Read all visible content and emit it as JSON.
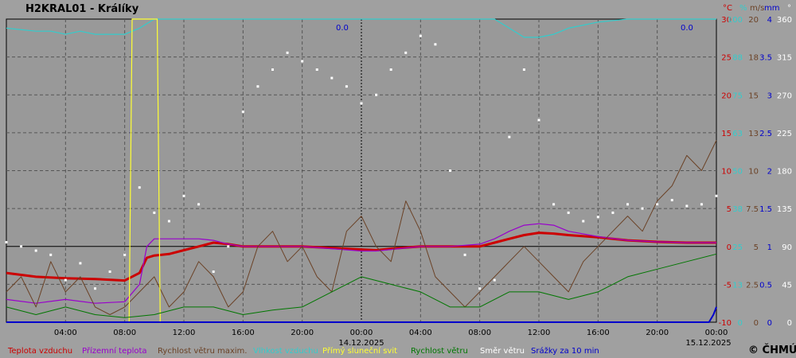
{
  "chart_data": {
    "type": "line",
    "title": "H2KRAL01 - Králíky",
    "copyright": "© ČHMÚ",
    "axis_units": [
      "°C",
      "%",
      "m/s",
      "mm",
      "°"
    ],
    "x_ticks": [
      "04:00",
      "08:00",
      "12:00",
      "16:00",
      "20:00",
      "00:00",
      "04:00",
      "08:00",
      "12:00",
      "16:00",
      "20:00",
      "00:00"
    ],
    "x_dates": [
      "14.12.2025",
      "15.12.2025"
    ],
    "y_axes": {
      "temperature_c": [
        30,
        25,
        20,
        15,
        10,
        5,
        0,
        -5,
        -10
      ],
      "humidity_pct": [
        100,
        88,
        75,
        63,
        50,
        38,
        25,
        13,
        0
      ],
      "wind_max_ms": [
        20,
        18,
        15,
        13,
        10,
        7.5,
        5,
        2.5,
        0
      ],
      "precip_mm": [
        4,
        3.5,
        3,
        2.5,
        2,
        1.5,
        1,
        0.5,
        0
      ],
      "wind_dir_deg": [
        360,
        315,
        270,
        225,
        180,
        135,
        90,
        45,
        0
      ]
    },
    "ylim_temperature": [
      -10,
      30
    ],
    "annotations": [
      "0.0",
      "0.0"
    ],
    "colors": {
      "temperature": "#cc0000",
      "ground_temp": "#9900cc",
      "wind_max": "#6b4226",
      "humidity": "#33cccc",
      "sunshine": "#ffff33",
      "wind_speed": "#007700",
      "wind_dir": "#ffffff",
      "precip": "#0000cc"
    },
    "series": [
      {
        "name": "Teplota vzduchu",
        "key": "temperature",
        "axis": "temperature_c",
        "x": [
          0,
          2,
          4,
          6,
          8,
          9,
          9.5,
          10,
          11,
          12,
          13,
          14,
          15,
          16,
          18,
          20,
          22,
          24,
          25,
          26,
          28,
          30,
          32,
          33,
          34,
          35,
          36,
          37,
          38,
          40,
          42,
          44,
          46,
          48
        ],
        "y": [
          -3.5,
          -4,
          -4.2,
          -4.3,
          -4.5,
          -3.5,
          -1.5,
          -1.2,
          -1,
          -0.5,
          0,
          0.5,
          0.3,
          0,
          0,
          0,
          -0.2,
          -0.4,
          -0.5,
          -0.3,
          0,
          0,
          0,
          0.5,
          1,
          1.5,
          1.8,
          1.7,
          1.5,
          1.2,
          0.8,
          0.6,
          0.5,
          0.5
        ]
      },
      {
        "name": "Přízemní teplota",
        "key": "ground_temp",
        "axis": "temperature_c",
        "x": [
          0,
          2,
          4,
          6,
          8,
          9,
          9.5,
          10,
          11,
          12,
          13,
          14,
          15,
          16,
          18,
          20,
          22,
          24,
          25,
          26,
          28,
          30,
          32,
          33,
          34,
          35,
          36,
          37,
          38,
          40,
          42,
          44,
          46,
          48
        ],
        "y": [
          -7,
          -7.5,
          -7,
          -7.5,
          -7.3,
          -5,
          0,
          1,
          1,
          1,
          1,
          0.8,
          0.3,
          0,
          0,
          0,
          -0.3,
          -0.6,
          -0.6,
          -0.4,
          0,
          0,
          0.3,
          1,
          2,
          2.8,
          3,
          2.8,
          2,
          1.3,
          0.8,
          0.6,
          0.5,
          0.5
        ]
      },
      {
        "name": "Rychlost větru maxim.",
        "key": "wind_max",
        "axis": "wind_max_ms",
        "x": [
          0,
          1,
          2,
          3,
          4,
          5,
          6,
          7,
          8,
          9,
          10,
          11,
          12,
          13,
          14,
          15,
          16,
          17,
          18,
          19,
          20,
          21,
          22,
          23,
          24,
          25,
          26,
          27,
          28,
          29,
          30,
          31,
          32,
          33,
          34,
          35,
          36,
          37,
          38,
          39,
          40,
          41,
          42,
          43,
          44,
          45,
          46,
          47,
          48
        ],
        "y": [
          2,
          3,
          1,
          4,
          2,
          3,
          1,
          0.5,
          1,
          2,
          3,
          1,
          2,
          4,
          3,
          1,
          2,
          5,
          6,
          4,
          5,
          3,
          2,
          6,
          7,
          5,
          4,
          8,
          6,
          3,
          2,
          1,
          2,
          3,
          4,
          5,
          4,
          3,
          2,
          4,
          5,
          6,
          7,
          6,
          8,
          9,
          11,
          10,
          12
        ]
      },
      {
        "name": "Vlhkost vzduchu",
        "key": "humidity",
        "axis": "humidity_pct",
        "x": [
          0,
          2,
          3,
          4,
          5,
          6,
          7,
          8,
          9,
          10,
          12,
          14,
          16,
          18,
          20,
          22,
          24,
          26,
          28,
          30,
          32,
          33,
          34,
          35,
          36,
          37,
          38,
          40,
          42,
          44,
          46,
          48
        ],
        "y": [
          97,
          96,
          96,
          95,
          96,
          95,
          95,
          95,
          97,
          100,
          100,
          100,
          100,
          100,
          100,
          100,
          100,
          100,
          100,
          100,
          100,
          100,
          97,
          94,
          94,
          95,
          97,
          99,
          100,
          100,
          100,
          100
        ]
      },
      {
        "name": "Přímý sluneční svit",
        "key": "sunshine",
        "axis": "humidity_pct",
        "x": [
          8.3,
          8.5,
          10.1,
          10.2,
          10.4,
          10.5
        ],
        "y": [
          0,
          100,
          100,
          100,
          0,
          0
        ]
      },
      {
        "name": "Rychlost větru",
        "key": "wind_speed",
        "axis": "wind_max_ms",
        "x": [
          0,
          2,
          4,
          6,
          8,
          10,
          12,
          14,
          16,
          18,
          20,
          22,
          24,
          26,
          28,
          30,
          32,
          34,
          36,
          38,
          40,
          42,
          44,
          46,
          48
        ],
        "y": [
          1,
          0.5,
          1,
          0.5,
          0.3,
          0.5,
          1,
          1,
          0.5,
          0.8,
          1,
          2,
          3,
          2.5,
          2,
          1,
          1,
          2,
          2,
          1.5,
          2,
          3,
          3.5,
          4,
          4.5
        ]
      },
      {
        "name": "Směr větru",
        "key": "wind_dir",
        "axis": "wind_dir_deg",
        "x": [
          0,
          1,
          2,
          3,
          4,
          5,
          6,
          7,
          8,
          9,
          10,
          11,
          12,
          13,
          14,
          15,
          16,
          17,
          18,
          19,
          20,
          21,
          22,
          23,
          24,
          25,
          26,
          27,
          28,
          29,
          30,
          31,
          32,
          33,
          34,
          35,
          36,
          37,
          38,
          39,
          40,
          41,
          42,
          43,
          44,
          45,
          46,
          47,
          48
        ],
        "y": [
          95,
          90,
          85,
          80,
          50,
          70,
          40,
          60,
          80,
          160,
          130,
          120,
          150,
          140,
          60,
          90,
          250,
          280,
          300,
          320,
          310,
          300,
          290,
          280,
          260,
          270,
          300,
          320,
          340,
          330,
          180,
          80,
          40,
          50,
          220,
          300,
          240,
          140,
          130,
          120,
          125,
          130,
          140,
          135,
          140,
          145,
          138,
          140,
          150
        ]
      },
      {
        "name": "Srážky za 10 min",
        "key": "precip",
        "axis": "precip_mm",
        "x": [
          0,
          47.5,
          47.8,
          48
        ],
        "y": [
          0,
          0,
          0.1,
          0.2
        ]
      }
    ]
  }
}
